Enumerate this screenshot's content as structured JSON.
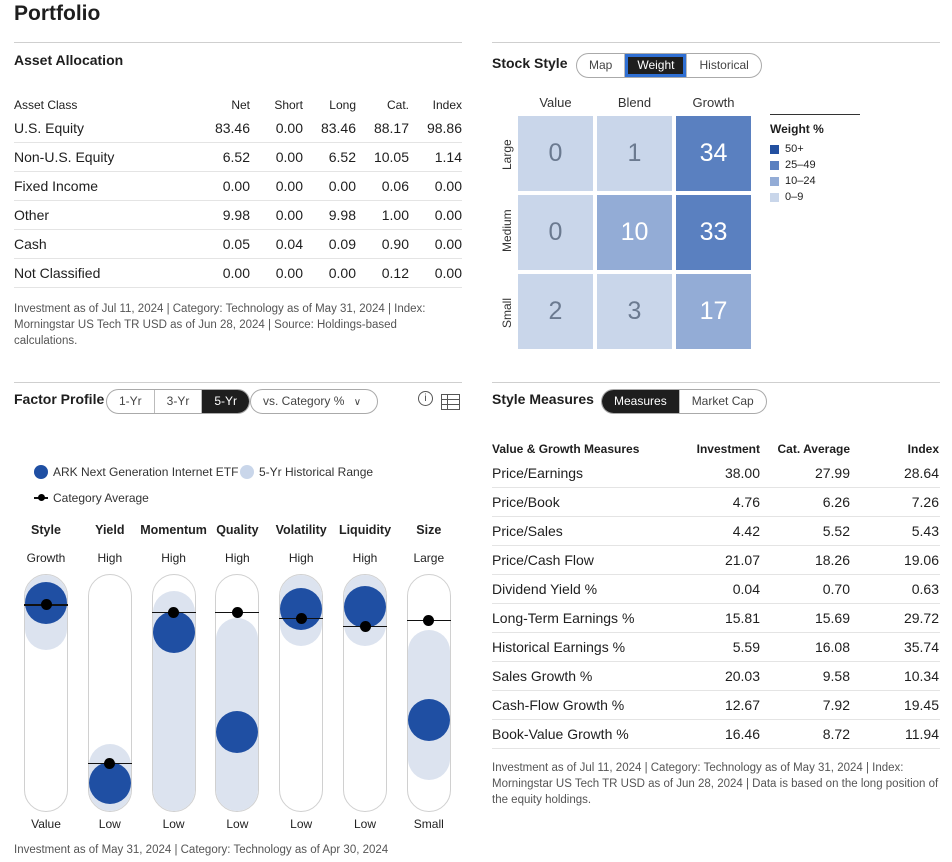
{
  "page_title": "Portfolio",
  "asset_allocation": {
    "title": "Asset Allocation",
    "columns": [
      "Asset Class",
      "Net",
      "Short",
      "Long",
      "Cat.",
      "Index"
    ],
    "rows": [
      [
        "U.S. Equity",
        "83.46",
        "0.00",
        "83.46",
        "88.17",
        "98.86"
      ],
      [
        "Non-U.S. Equity",
        "6.52",
        "0.00",
        "6.52",
        "10.05",
        "1.14"
      ],
      [
        "Fixed Income",
        "0.00",
        "0.00",
        "0.00",
        "0.06",
        "0.00"
      ],
      [
        "Other",
        "9.98",
        "0.00",
        "9.98",
        "1.00",
        "0.00"
      ],
      [
        "Cash",
        "0.05",
        "0.04",
        "0.09",
        "0.90",
        "0.00"
      ],
      [
        "Not Classified",
        "0.00",
        "0.00",
        "0.00",
        "0.12",
        "0.00"
      ]
    ],
    "footnote": "Investment as of Jul 11, 2024 | Category: Technology as of May 31, 2024 | Index: Morningstar US Tech TR USD as of Jun 28, 2024 | Source: Holdings-based calculations."
  },
  "stock_style": {
    "title": "Stock Style",
    "tabs": [
      "Map",
      "Weight",
      "Historical"
    ],
    "active_tab": "Weight",
    "columns": [
      "Value",
      "Blend",
      "Growth"
    ],
    "rows": [
      "Large",
      "Medium",
      "Small"
    ],
    "grid": [
      [
        "0",
        "1",
        "34"
      ],
      [
        "0",
        "10",
        "33"
      ],
      [
        "2",
        "3",
        "17"
      ]
    ],
    "legend_title": "Weight %",
    "legend": [
      {
        "label": "50+",
        "color": "#2350a0"
      },
      {
        "label": "25–49",
        "color": "#5a80c0"
      },
      {
        "label": "10–24",
        "color": "#93acd6"
      },
      {
        "label": "0–9",
        "color": "#c9d6ea"
      }
    ]
  },
  "factor_profile": {
    "title": "Factor Profile",
    "periods": [
      "1-Yr",
      "3-Yr",
      "5-Yr"
    ],
    "active_period": "5-Yr",
    "compare_dropdown": "vs. Category %",
    "legend_fund": "ARK Next Generation Internet ETF",
    "legend_range": "5-Yr Historical Range",
    "legend_category": "Category Average",
    "factors": [
      {
        "name": "Style",
        "top": "Growth",
        "bottom": "Value",
        "fund": 96,
        "cat": 95,
        "range": [
          82,
          100
        ]
      },
      {
        "name": "Yield",
        "top": "High",
        "bottom": "Low",
        "fund": 4,
        "cat": 14,
        "range": [
          0,
          14
        ]
      },
      {
        "name": "Momentum",
        "top": "High",
        "bottom": "Low",
        "fund": 81,
        "cat": 91,
        "range": [
          0,
          92
        ]
      },
      {
        "name": "Quality",
        "top": "High",
        "bottom": "Low",
        "fund": 30,
        "cat": 91,
        "range": [
          0,
          78
        ]
      },
      {
        "name": "Volatility",
        "top": "High",
        "bottom": "Low",
        "fund": 93,
        "cat": 88,
        "range": [
          84,
          100
        ]
      },
      {
        "name": "Liquidity",
        "top": "High",
        "bottom": "Low",
        "fund": 94,
        "cat": 84,
        "range": [
          84,
          100
        ]
      },
      {
        "name": "Size",
        "top": "Large",
        "bottom": "Small",
        "fund": 36,
        "cat": 87,
        "range": [
          16,
          72
        ]
      }
    ],
    "footnote": "Investment as of May 31, 2024 | Category: Technology as of Apr 30, 2024"
  },
  "style_measures": {
    "title": "Style Measures",
    "tabs": [
      "Measures",
      "Market Cap"
    ],
    "active_tab": "Measures",
    "columns": [
      "Value & Growth Measures",
      "Investment",
      "Cat. Average",
      "Index"
    ],
    "rows": [
      [
        "Price/Earnings",
        "38.00",
        "27.99",
        "28.64"
      ],
      [
        "Price/Book",
        "4.76",
        "6.26",
        "7.26"
      ],
      [
        "Price/Sales",
        "4.42",
        "5.52",
        "5.43"
      ],
      [
        "Price/Cash Flow",
        "21.07",
        "18.26",
        "19.06"
      ],
      [
        "Dividend Yield %",
        "0.04",
        "0.70",
        "0.63"
      ],
      [
        "Long-Term Earnings %",
        "15.81",
        "15.69",
        "29.72"
      ],
      [
        "Historical Earnings %",
        "5.59",
        "16.08",
        "35.74"
      ],
      [
        "Sales Growth %",
        "20.03",
        "9.58",
        "10.34"
      ],
      [
        "Cash-Flow Growth %",
        "12.67",
        "7.92",
        "19.45"
      ],
      [
        "Book-Value Growth %",
        "16.46",
        "8.72",
        "11.94"
      ]
    ],
    "footnote": "Investment as of Jul 11, 2024 | Category: Technology as of May 31, 2024 | Index: Morningstar US Tech TR USD as of Jun 28, 2024 | Data is based on the long position of the equity holdings."
  }
}
